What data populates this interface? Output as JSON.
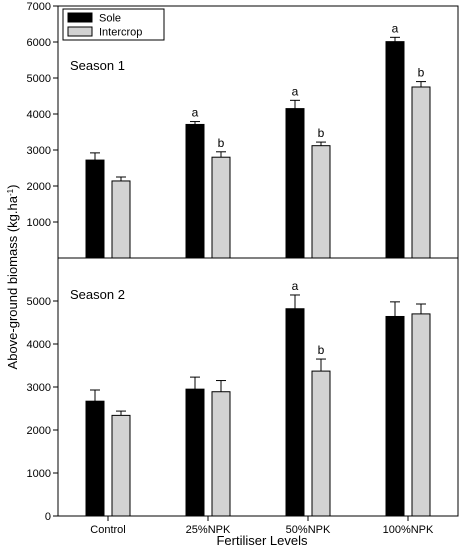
{
  "chart_data": {
    "type": "bar",
    "xlabel": "Fertiliser Levels",
    "ylabel_main": "Above-ground biomass (kg.ha",
    "ylabel_sup": "-1",
    "ylabel_close": ")",
    "categories": [
      "Control",
      "25%NPK",
      "50%NPK",
      "100%NPK"
    ],
    "legend": {
      "position": "top-left",
      "entries": [
        {
          "name": "Sole",
          "color": "#000000"
        },
        {
          "name": "Intercrop",
          "color": "#d3d3d3"
        }
      ]
    },
    "panels": [
      {
        "label": "Season 1",
        "ylim": [
          0,
          7000
        ],
        "yticks": [
          1000,
          2000,
          3000,
          4000,
          5000,
          6000,
          7000
        ],
        "series": [
          {
            "name": "Sole",
            "values": [
              2720,
              3710,
              4150,
              6010
            ],
            "errors": [
              200,
              80,
              230,
              120
            ],
            "sig": [
              "",
              "a",
              "a",
              "a"
            ]
          },
          {
            "name": "Intercrop",
            "values": [
              2140,
              2800,
              3120,
              4750
            ],
            "errors": [
              110,
              150,
              100,
              150
            ],
            "sig": [
              "",
              "b",
              "b",
              "b"
            ]
          }
        ]
      },
      {
        "label": "Season 2",
        "ylim": [
          0,
          6000
        ],
        "yticks": [
          0,
          1000,
          2000,
          3000,
          4000,
          5000
        ],
        "series": [
          {
            "name": "Sole",
            "values": [
              2670,
              2950,
              4820,
              4640
            ],
            "errors": [
              260,
              280,
              320,
              340
            ],
            "sig": [
              "",
              "",
              "a",
              ""
            ]
          },
          {
            "name": "Intercrop",
            "values": [
              2340,
              2890,
              3370,
              4700
            ],
            "errors": [
              100,
              260,
              280,
              230
            ],
            "sig": [
              "",
              "",
              "b",
              ""
            ]
          }
        ]
      }
    ],
    "colors": {
      "sole": "#000000",
      "intercrop": "#d3d3d3",
      "axis": "#000000"
    }
  }
}
